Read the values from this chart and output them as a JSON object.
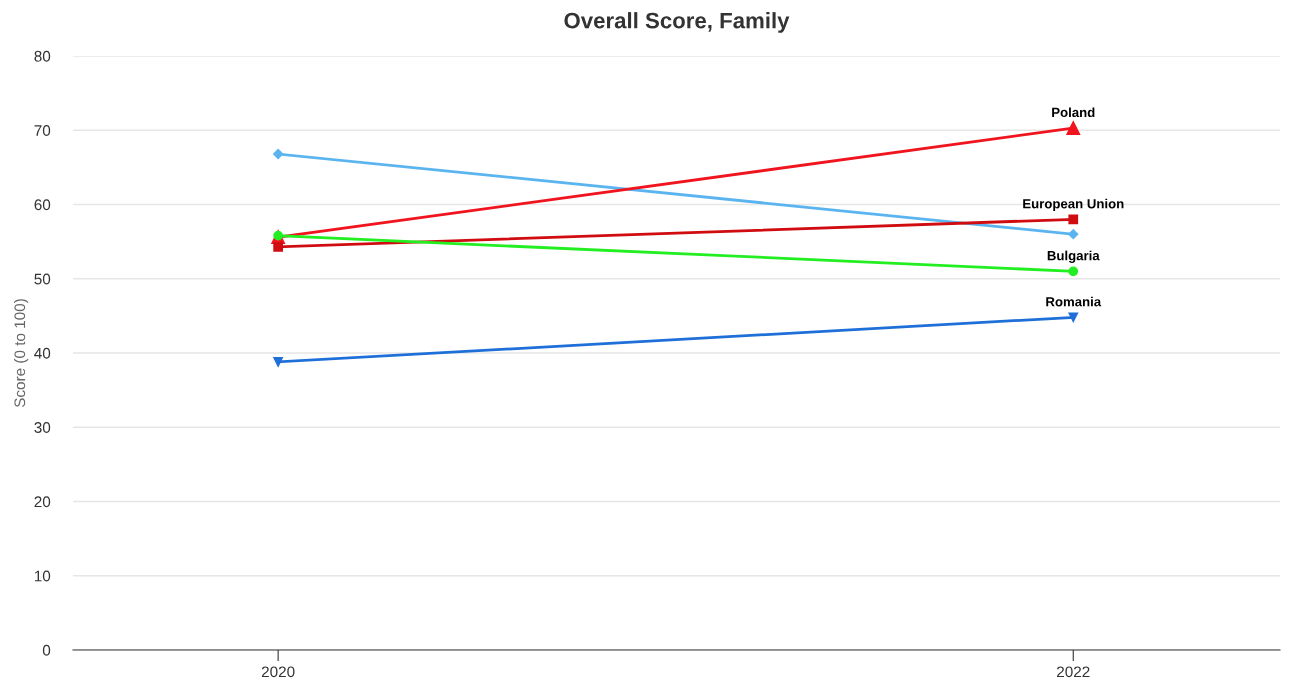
{
  "chart_data": {
    "type": "line",
    "title": "Overall Score, Family",
    "ylabel": "Score (0 to 100)",
    "categories": [
      "2020",
      "2022"
    ],
    "series": [
      {
        "color": "#5ab4f0",
        "marker": "diamond",
        "values": [
          66.8,
          56.0
        ]
      },
      {
        "name": "Poland",
        "color": "#f0141e",
        "marker": "triangle",
        "values": [
          55.6,
          70.3
        ]
      },
      {
        "name": "European Union",
        "color": "#d00c10",
        "marker": "square",
        "values": [
          54.3,
          58.0
        ]
      },
      {
        "name": "Bulgaria",
        "color": "#22ee22",
        "marker": "circle",
        "values": [
          55.8,
          51.0
        ]
      },
      {
        "name": "Romania",
        "color": "#1f6fd9",
        "marker": "triangle-down",
        "values": [
          38.8,
          44.8
        ]
      }
    ],
    "ylim": [
      0,
      80
    ],
    "yticks": [
      0,
      10,
      20,
      30,
      40,
      50,
      60,
      70,
      80
    ],
    "grid": "y",
    "legend": false,
    "data_labels": false
  }
}
